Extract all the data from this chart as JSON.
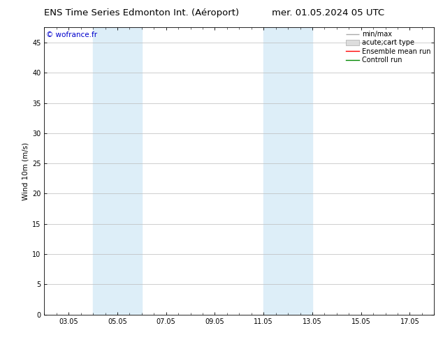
{
  "title_left": "ENS Time Series Edmonton Int. (Aéroport)",
  "title_right": "mer. 01.05.2024 05 UTC",
  "ylabel": "Wind 10m (m/s)",
  "ylim": [
    0,
    47.5
  ],
  "yticks": [
    0,
    5,
    10,
    15,
    20,
    25,
    30,
    35,
    40,
    45
  ],
  "xtick_labels": [
    "03.05",
    "05.05",
    "07.05",
    "09.05",
    "11.05",
    "13.05",
    "15.05",
    "17.05"
  ],
  "xtick_positions": [
    3.0,
    5.0,
    7.0,
    9.0,
    11.0,
    13.0,
    15.0,
    17.0
  ],
  "xlim": [
    2.0,
    18.0
  ],
  "blue_bands": [
    {
      "xmin": 4.0,
      "xmax": 6.0
    },
    {
      "xmin": 11.0,
      "xmax": 13.0
    }
  ],
  "band_color": "#ddeef8",
  "copyright_text": "© wofrance.fr",
  "copyright_color": "#0000cc",
  "bg_color": "#ffffff",
  "plot_bg_color": "#ffffff",
  "grid_color": "#bbbbbb",
  "title_fontsize": 9.5,
  "ylabel_fontsize": 7.5,
  "tick_fontsize": 7,
  "legend_fontsize": 7,
  "copyright_fontsize": 7.5
}
